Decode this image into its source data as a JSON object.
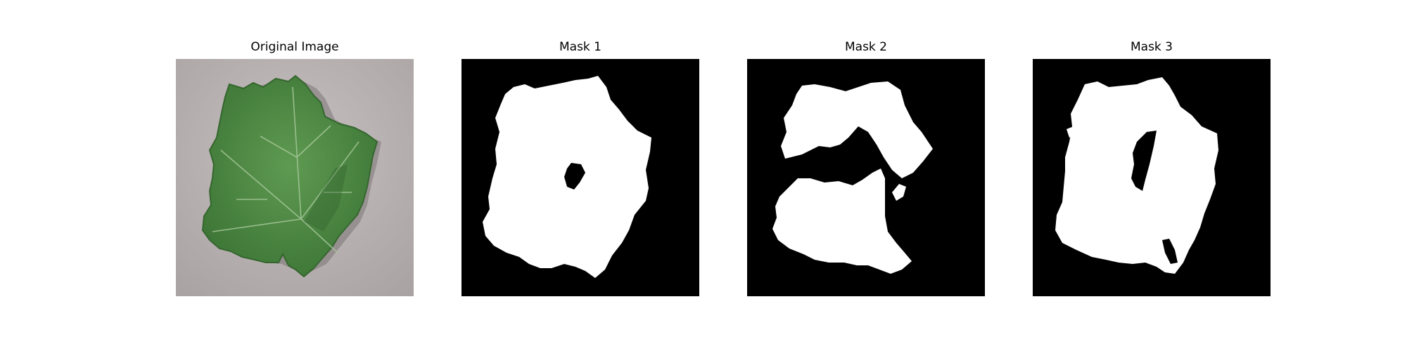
{
  "panels": [
    {
      "title": "Original Image"
    },
    {
      "title": "Mask 1"
    },
    {
      "title": "Mask 2"
    },
    {
      "title": "Mask 3"
    }
  ],
  "colors": {
    "mask_background": "#000000",
    "mask_foreground": "#ffffff",
    "leaf_green": "#4f8a45",
    "leaf_dark": "#2f5e2a",
    "surface_gray": "#b9b2b2"
  }
}
